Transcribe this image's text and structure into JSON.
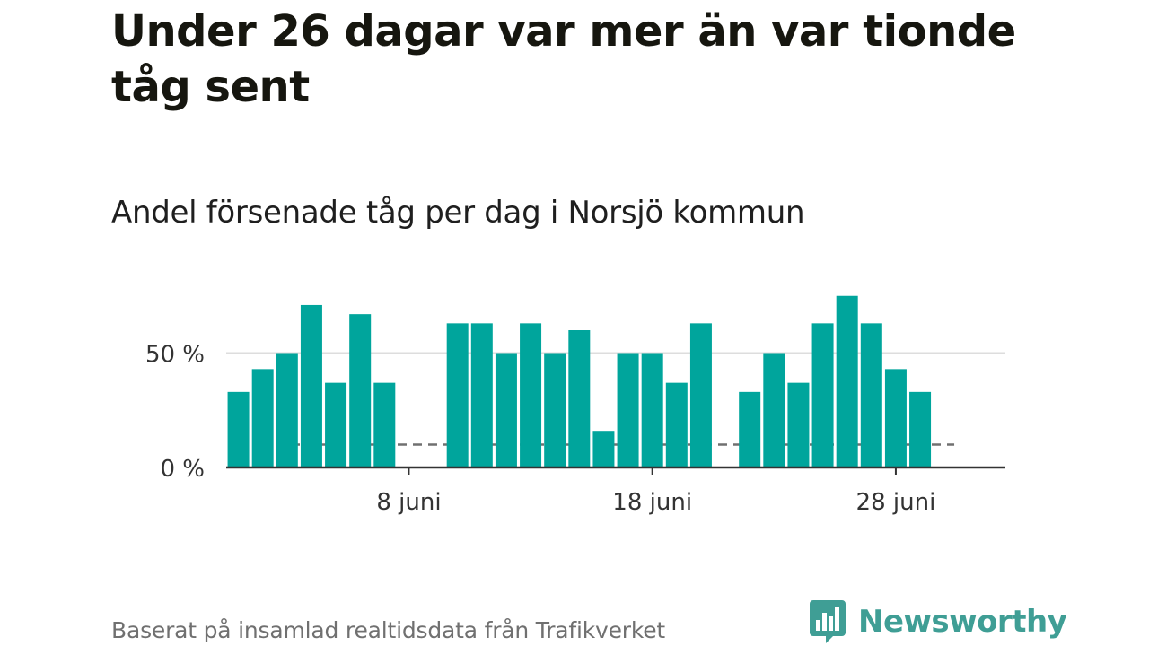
{
  "title": "Under 26 dagar var mer än var tionde tåg sent",
  "subtitle": "Andel försenade tåg per dag i Norsjö kommun",
  "source": "Baserat på insamlad realtidsdata från Trafikverket",
  "brand": {
    "name": "Newsworthy",
    "logo_icon": "bar-chart-speech-bubble-icon"
  },
  "colors": {
    "bar": "#00a59c",
    "reference_line": "#707070",
    "grid": "#dddddd",
    "axis": "#333333",
    "brand": "#3f9e95"
  },
  "chart_data": {
    "type": "bar",
    "title": "Andel försenade tåg per dag i Norsjö kommun",
    "xlabel": "",
    "ylabel": "",
    "unit": "%",
    "x_range": [
      0.5,
      32.5
    ],
    "ylim": [
      0,
      82
    ],
    "categories": [
      1,
      2,
      3,
      4,
      5,
      6,
      7,
      8,
      9,
      10,
      11,
      12,
      13,
      14,
      15,
      16,
      17,
      18,
      19,
      20,
      21,
      22,
      23,
      24,
      25,
      26,
      27,
      28,
      29,
      30
    ],
    "values": [
      33,
      43,
      50,
      71,
      37,
      67,
      37,
      null,
      null,
      63,
      63,
      50,
      63,
      50,
      60,
      16,
      50,
      50,
      37,
      63,
      null,
      33,
      50,
      37,
      63,
      75,
      63,
      43,
      33,
      null
    ],
    "reference_line": {
      "value": 10,
      "style": "dashed",
      "x_range": [
        0.5,
        30.4
      ]
    },
    "y_ticks": [
      {
        "value": 0,
        "label": "0 %"
      },
      {
        "value": 50,
        "label": "50 %"
      }
    ],
    "x_ticks": [
      {
        "value": 8,
        "label": "8 juni"
      },
      {
        "value": 18,
        "label": "18 juni"
      },
      {
        "value": 28,
        "label": "28 juni"
      }
    ]
  }
}
